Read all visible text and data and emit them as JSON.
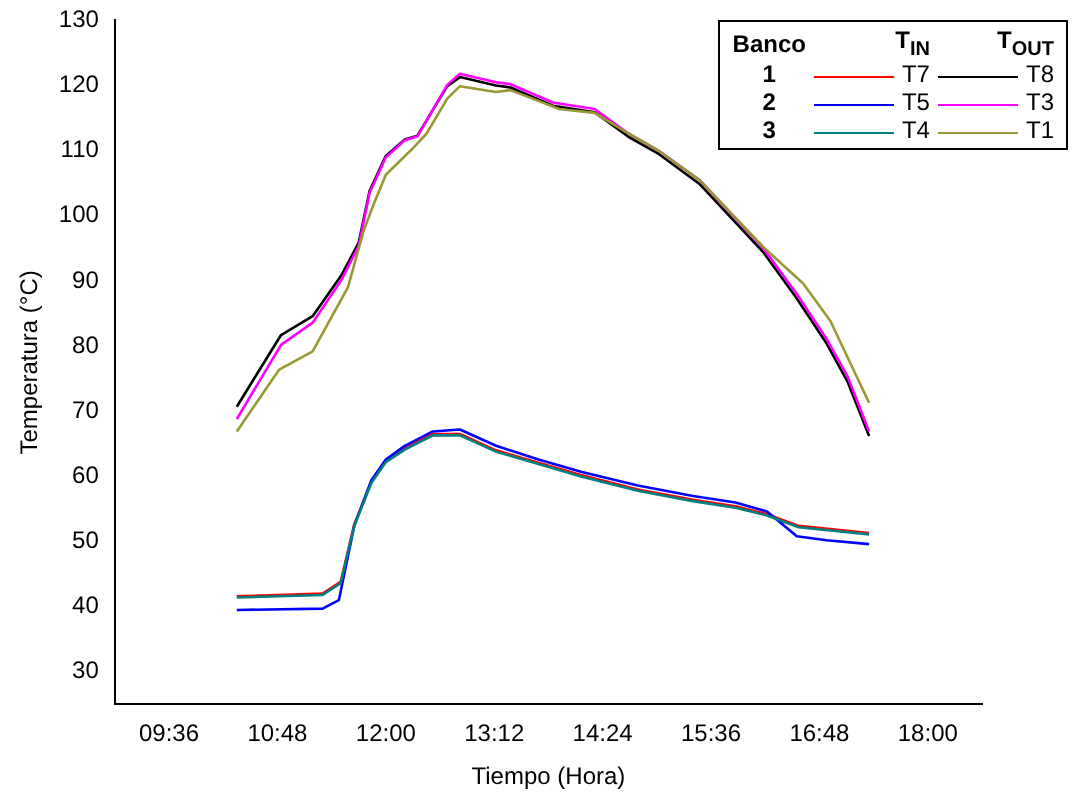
{
  "chart_data": {
    "type": "line",
    "xlabel": "Tiempo (Hora)",
    "ylabel": "Temperatura (°C)",
    "legend_title": "Banco",
    "annotations": [
      "T$_{IN}$",
      "T$_{OUT}$",
      "1",
      "2",
      "3"
    ],
    "legend": "top right",
    "grid": false,
    "marker": "none",
    "line_style": "solid",
    "xlim": [
      9,
      18.6
    ],
    "ylim": [
      25,
      130
    ],
    "xticks": [
      {
        "value": 9.6,
        "label": "09:36"
      },
      {
        "value": 10.8,
        "label": "10:48"
      },
      {
        "value": 12,
        "label": "12:00"
      },
      {
        "value": 13.2,
        "label": "13:12"
      },
      {
        "value": 14.4,
        "label": "14:24"
      },
      {
        "value": 15.6,
        "label": "15:36"
      },
      {
        "value": 16.8,
        "label": "16:48"
      },
      {
        "value": 18,
        "label": "18:00"
      }
    ],
    "yticks": [
      30,
      40,
      50,
      60,
      70,
      80,
      90,
      100,
      110,
      120,
      130
    ],
    "series": [
      {
        "name": "T7",
        "color": "#ff0000",
        "x": [
          10.35,
          11.3,
          11.5,
          11.65,
          11.84,
          12.0,
          12.21,
          12.52,
          12.82,
          13.22,
          13.69,
          14.16,
          14.79,
          15.4,
          15.87,
          16.22,
          16.57,
          17.35
        ],
        "values": [
          41.6,
          42.0,
          43.8,
          52.6,
          59.2,
          62.4,
          64.3,
          66.5,
          66.5,
          64.0,
          62.1,
          60.2,
          58.0,
          56.4,
          55.4,
          54.2,
          52.4,
          51.3
        ]
      },
      {
        "name": "T8",
        "color": "#000000",
        "x": [
          10.35,
          10.84,
          11.19,
          11.51,
          11.7,
          11.82,
          12.0,
          12.21,
          12.35,
          12.68,
          12.82,
          13.22,
          13.38,
          13.85,
          13.99,
          14.31,
          14.69,
          15.01,
          15.48,
          16.18,
          16.55,
          16.88,
          17.11,
          17.35
        ],
        "values": [
          70.7,
          81.7,
          84.6,
          90.9,
          95.9,
          103.8,
          109.2,
          111.7,
          112.3,
          119.9,
          121.3,
          120.0,
          119.7,
          116.9,
          116.6,
          115.9,
          112.1,
          109.6,
          104.8,
          94.4,
          87.3,
          80.4,
          74.6,
          66.2
        ]
      },
      {
        "name": "T5",
        "color": "#0000ff",
        "x": [
          10.35,
          11.3,
          11.48,
          11.65,
          11.84,
          12.0,
          12.21,
          12.52,
          12.82,
          13.22,
          13.69,
          14.16,
          14.79,
          15.4,
          15.87,
          16.22,
          16.55,
          16.88,
          17.35
        ],
        "values": [
          39.5,
          39.7,
          41.0,
          52.4,
          59.4,
          62.6,
          64.7,
          66.9,
          67.2,
          64.7,
          62.6,
          60.7,
          58.6,
          57.0,
          56.0,
          54.6,
          50.8,
          50.2,
          49.6
        ]
      },
      {
        "name": "T3",
        "color": "#ff00ff",
        "x": [
          10.35,
          10.84,
          11.19,
          11.51,
          11.7,
          11.82,
          12.0,
          12.21,
          12.35,
          12.68,
          12.82,
          13.22,
          13.38,
          13.85,
          13.99,
          14.31,
          14.69,
          15.01,
          15.48,
          16.18,
          16.55,
          16.88,
          17.11,
          17.35
        ],
        "values": [
          68.8,
          80.2,
          83.6,
          90.2,
          95.4,
          103.5,
          109.0,
          111.6,
          112.2,
          120.1,
          121.8,
          120.5,
          120.2,
          117.4,
          117.1,
          116.4,
          112.6,
          110.1,
          105.4,
          95.0,
          88.0,
          81.1,
          75.4,
          66.9
        ]
      },
      {
        "name": "T4",
        "color": "#008080",
        "x": [
          10.35,
          11.3,
          11.5,
          11.65,
          11.84,
          12.0,
          12.21,
          12.52,
          12.82,
          13.22,
          13.69,
          14.16,
          14.79,
          15.4,
          15.87,
          16.22,
          16.57,
          17.35
        ],
        "values": [
          41.4,
          41.8,
          43.6,
          52.4,
          59.0,
          62.2,
          64.1,
          66.3,
          66.3,
          63.8,
          61.9,
          60.0,
          57.8,
          56.2,
          55.2,
          54.0,
          52.2,
          51.1
        ]
      },
      {
        "name": "T1",
        "color": "#999933",
        "x": [
          10.35,
          10.82,
          11.19,
          11.58,
          11.75,
          11.86,
          12.0,
          12.28,
          12.45,
          12.68,
          12.82,
          13.22,
          13.38,
          13.92,
          14.31,
          14.69,
          15.01,
          15.48,
          16.18,
          16.62,
          16.92,
          17.35
        ],
        "values": [
          66.9,
          76.4,
          79.2,
          89.0,
          97.5,
          101.6,
          106.3,
          110.1,
          112.6,
          118.0,
          119.9,
          119.0,
          119.3,
          116.4,
          115.8,
          112.6,
          110.1,
          105.4,
          95.2,
          89.6,
          83.9,
          71.3
        ]
      }
    ]
  }
}
